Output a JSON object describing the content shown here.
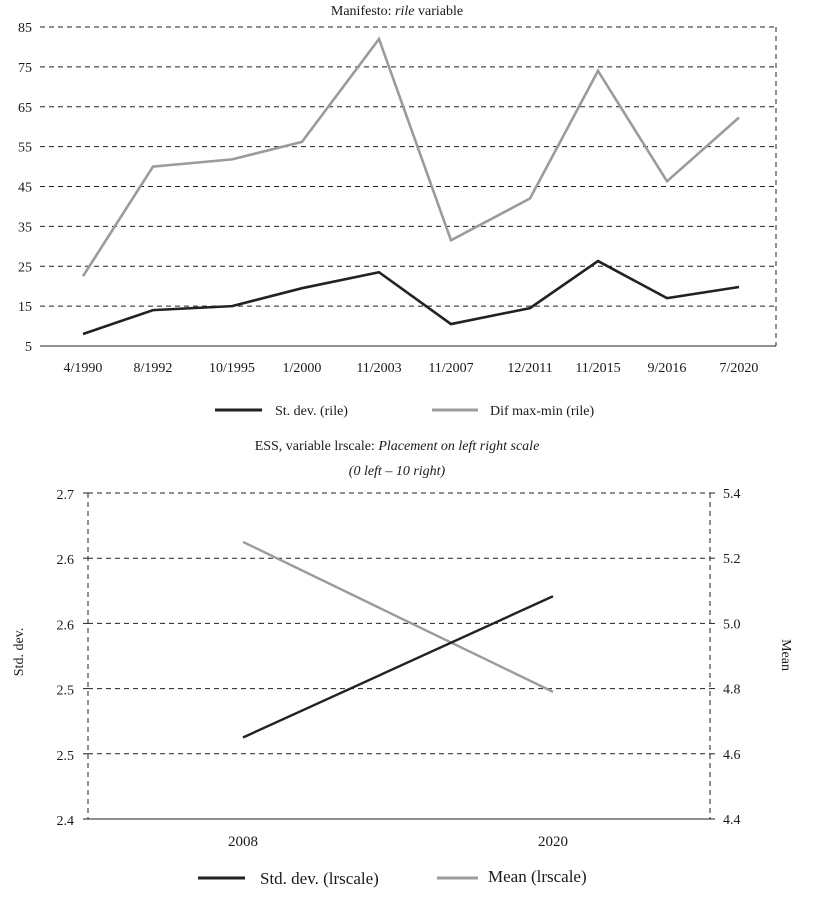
{
  "colors": {
    "dark_series": "#222222",
    "light_series": "#9b9b9b",
    "grid": "#222222"
  },
  "chart_data": [
    {
      "type": "line",
      "title_prefix": "Manifesto: ",
      "title_italic": "rile",
      "title_suffix": " variable",
      "categories": [
        "4/1990",
        "8/1992",
        "10/1995",
        "1/2000",
        "11/2003",
        "11/2007",
        "12/2011",
        "11/2015",
        "9/2016",
        "7/2020"
      ],
      "yticks": [
        5,
        15,
        25,
        35,
        45,
        55,
        65,
        75,
        85
      ],
      "ylim": [
        5,
        85
      ],
      "series": [
        {
          "name": "St. dev. (rile)",
          "color": "#222222",
          "values": [
            8,
            14,
            15,
            19.5,
            23.5,
            10.5,
            14.5,
            26.3,
            17,
            19.8
          ]
        },
        {
          "name": "Dif max-min (rile)",
          "color": "#9b9b9b",
          "values": [
            22.5,
            50,
            51.8,
            56.2,
            82,
            31.5,
            42,
            74,
            46.3,
            62.3
          ]
        }
      ],
      "legend": [
        "St. dev. (rile)",
        "Dif max-min (rile)"
      ]
    },
    {
      "type": "line",
      "title_line1_prefix": "ESS, variable lrscale: ",
      "title_line1_italic": "Placement on left right scale",
      "title_line2": "(0 left – 10 right)",
      "categories": [
        "2008",
        "2020"
      ],
      "ylabel_left": "Std. dev.",
      "ylabel_right": "Mean",
      "left_ticks": [
        "2.7",
        "2.6",
        "2.6",
        "2.5",
        "2.5",
        "2.4"
      ],
      "right_ticks": [
        "5.4",
        "5.2",
        "5.0",
        "4.8",
        "4.6",
        "4.4"
      ],
      "left_ylim": [
        2.4,
        2.7
      ],
      "right_ylim": [
        4.4,
        5.4
      ],
      "series": [
        {
          "name": "Std. dev. (lrscale)",
          "axis": "left",
          "color": "#222222",
          "values": [
            2.475,
            2.605
          ]
        },
        {
          "name": "Mean (lrscale)",
          "axis": "right",
          "color": "#9b9b9b",
          "values": [
            5.25,
            4.79
          ]
        }
      ],
      "legend": [
        "Std. dev. (lrscale)",
        "Mean (lrscale)"
      ]
    }
  ]
}
